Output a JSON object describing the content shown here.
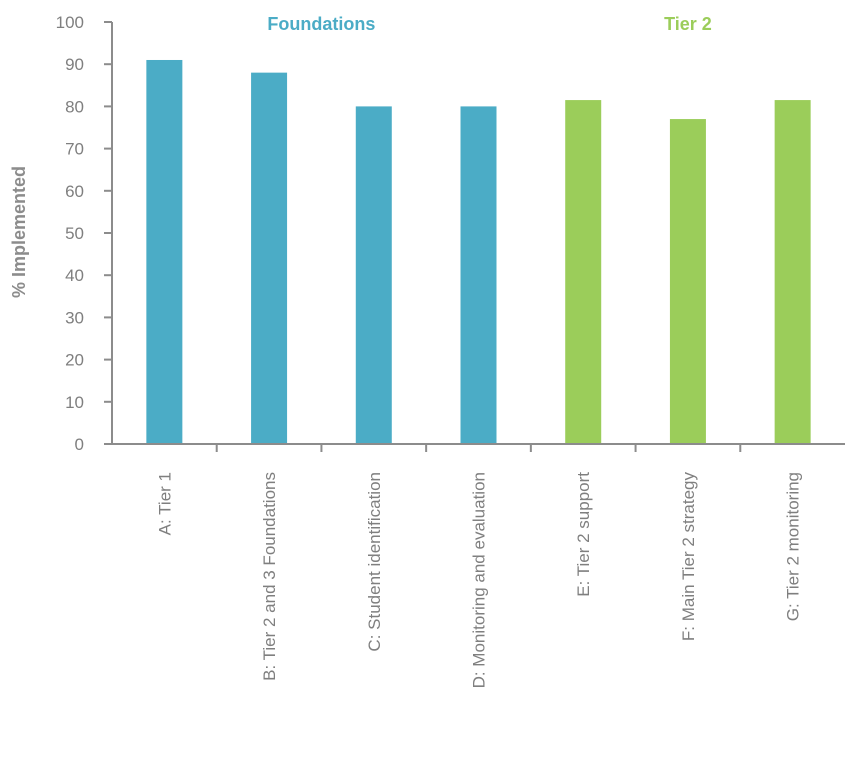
{
  "chart_data": {
    "type": "bar",
    "title": "",
    "xlabel": "",
    "ylabel": "% Implemented",
    "ylim": [
      0,
      100
    ],
    "yticks": [
      0,
      10,
      20,
      30,
      40,
      50,
      60,
      70,
      80,
      90,
      100
    ],
    "grid": false,
    "categories": [
      "A: Tier 1",
      "B: Tier 2 and 3 Foundations",
      "C: Student identification",
      "D: Monitoring and evaluation",
      "E: Tier 2 support",
      "F: Main Tier 2 strategy",
      "G: Tier 2 monitoring"
    ],
    "values": [
      91,
      88,
      80,
      80,
      81.5,
      77,
      81.5
    ],
    "groups": [
      {
        "name": "Foundations",
        "categories": [
          0,
          1,
          2,
          3
        ],
        "color": "#4bacc6"
      },
      {
        "name": "Tier 2",
        "categories": [
          4,
          5,
          6
        ],
        "color": "#9bcd5a"
      }
    ],
    "axis_color": "#8c8c8c"
  }
}
